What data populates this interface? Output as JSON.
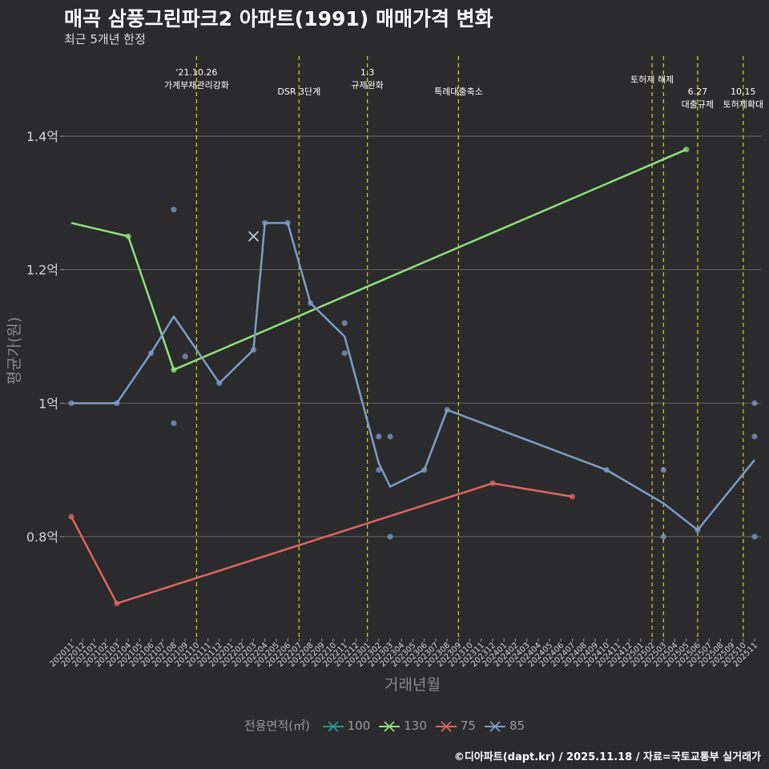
{
  "title": "매곡 삼풍그린파크2 아파트(1991) 매매가격 변화",
  "subtitle": "최근 5개년 한정",
  "caption": "©디아파트(dapt.kr) / 2025.11.18 / 자료=국토교통부 실거래가",
  "chart_data": {
    "type": "line",
    "xlabel": "거래년월",
    "ylabel": "평균가(원)",
    "ylim": [
      0.65,
      1.52
    ],
    "yticks": [
      {
        "value": 0.8,
        "label": "0.8억"
      },
      {
        "value": 1.0,
        "label": "1억"
      },
      {
        "value": 1.2,
        "label": "1.2억"
      },
      {
        "value": 1.4,
        "label": "1.4억"
      }
    ],
    "grid": true,
    "categories": [
      "202011",
      "202012",
      "202101",
      "202102",
      "202103",
      "202104",
      "202105",
      "202106",
      "202107",
      "202108",
      "202109",
      "202110",
      "202111",
      "202112",
      "202201",
      "202202",
      "202203",
      "202204",
      "202205",
      "202206",
      "202207",
      "202208",
      "202209",
      "202210",
      "202211",
      "202212",
      "202301",
      "202302",
      "202303",
      "202304",
      "202305",
      "202306",
      "202307",
      "202308",
      "202309",
      "202310",
      "202311",
      "202312",
      "202401",
      "202402",
      "202403",
      "202404",
      "202405",
      "202406",
      "202407",
      "202408",
      "202409",
      "202410",
      "202411",
      "202412",
      "202501",
      "202502",
      "202503",
      "202504",
      "202505",
      "202506",
      "202507",
      "202508",
      "202509",
      "202510",
      "202511"
    ],
    "legend_title": "전용면적(㎡)",
    "series": [
      {
        "name": "100",
        "color": "#1f9e89",
        "line": [],
        "points": [
          {
            "x": "202203",
            "y": 1.25
          }
        ]
      },
      {
        "name": "130",
        "color": "#8fe27c",
        "line": [
          {
            "x": "202011",
            "y": 1.27
          },
          {
            "x": "202104",
            "y": 1.25
          },
          {
            "x": "202108",
            "y": 1.05
          },
          {
            "x": "202505",
            "y": 1.38
          }
        ],
        "points": [
          {
            "x": "202104",
            "y": 1.25
          },
          {
            "x": "202108",
            "y": 1.05
          },
          {
            "x": "202505",
            "y": 1.38
          }
        ]
      },
      {
        "name": "75",
        "color": "#e06464",
        "line": [
          {
            "x": "202011",
            "y": 0.83
          },
          {
            "x": "202103",
            "y": 0.7
          },
          {
            "x": "202312",
            "y": 0.88
          },
          {
            "x": "202407",
            "y": 0.86
          }
        ],
        "points": [
          {
            "x": "202011",
            "y": 0.83
          },
          {
            "x": "202103",
            "y": 0.7
          },
          {
            "x": "202312",
            "y": 0.88
          },
          {
            "x": "202407",
            "y": 0.86
          }
        ]
      },
      {
        "name": "85",
        "color": "#7f9cc6",
        "line": [
          {
            "x": "202011",
            "y": 1.0
          },
          {
            "x": "202103",
            "y": 1.0
          },
          {
            "x": "202106",
            "y": 1.075
          },
          {
            "x": "202108",
            "y": 1.13
          },
          {
            "x": "202112",
            "y": 1.03
          },
          {
            "x": "202203",
            "y": 1.08
          },
          {
            "x": "202204",
            "y": 1.27
          },
          {
            "x": "202206",
            "y": 1.27
          },
          {
            "x": "202208",
            "y": 1.15
          },
          {
            "x": "202211",
            "y": 1.1
          },
          {
            "x": "202302",
            "y": 0.91
          },
          {
            "x": "202303",
            "y": 0.875
          },
          {
            "x": "202306",
            "y": 0.9
          },
          {
            "x": "202308",
            "y": 0.99
          },
          {
            "x": "202410",
            "y": 0.9
          },
          {
            "x": "202503",
            "y": 0.85
          },
          {
            "x": "202506",
            "y": 0.81
          },
          {
            "x": "202511",
            "y": 0.915
          }
        ],
        "points": [
          {
            "x": "202011",
            "y": 1.0
          },
          {
            "x": "202103",
            "y": 1.0
          },
          {
            "x": "202106",
            "y": 1.075
          },
          {
            "x": "202108",
            "y": 1.29
          },
          {
            "x": "202108",
            "y": 0.97
          },
          {
            "x": "202109",
            "y": 1.07
          },
          {
            "x": "202112",
            "y": 1.03
          },
          {
            "x": "202203",
            "y": 1.08
          },
          {
            "x": "202204",
            "y": 1.27
          },
          {
            "x": "202206",
            "y": 1.27
          },
          {
            "x": "202208",
            "y": 1.15
          },
          {
            "x": "202211",
            "y": 1.12
          },
          {
            "x": "202211",
            "y": 1.075
          },
          {
            "x": "202302",
            "y": 0.95
          },
          {
            "x": "202302",
            "y": 0.9
          },
          {
            "x": "202303",
            "y": 0.95
          },
          {
            "x": "202303",
            "y": 0.8
          },
          {
            "x": "202306",
            "y": 0.9
          },
          {
            "x": "202308",
            "y": 0.99
          },
          {
            "x": "202410",
            "y": 0.9
          },
          {
            "x": "202503",
            "y": 0.9
          },
          {
            "x": "202503",
            "y": 0.8
          },
          {
            "x": "202506",
            "y": 0.81
          },
          {
            "x": "202511",
            "y": 1.0
          },
          {
            "x": "202511",
            "y": 0.95
          },
          {
            "x": "202511",
            "y": 0.8
          }
        ]
      }
    ],
    "annotations": [
      {
        "x": "202110",
        "lines": [
          "'21.10.26",
          "가계부채관리강화"
        ],
        "row": 1
      },
      {
        "x": "202207",
        "lines": [
          "DSR 3단계"
        ],
        "row": 3
      },
      {
        "x": "202301",
        "lines": [
          "1.3",
          "규제완화"
        ],
        "row": 1
      },
      {
        "x": "202309",
        "lines": [
          "특례대출축소"
        ],
        "row": 3
      },
      {
        "x": "202502",
        "lines": [
          "토허제 해제"
        ],
        "row": 2
      },
      {
        "x": "202503",
        "lines": [],
        "row": 2
      },
      {
        "x": "202506",
        "lines": [
          "6.27",
          "대출규제"
        ],
        "row": 3
      },
      {
        "x": "202510",
        "lines": [
          "10.15",
          "토허제확대"
        ],
        "row": 3
      }
    ]
  }
}
